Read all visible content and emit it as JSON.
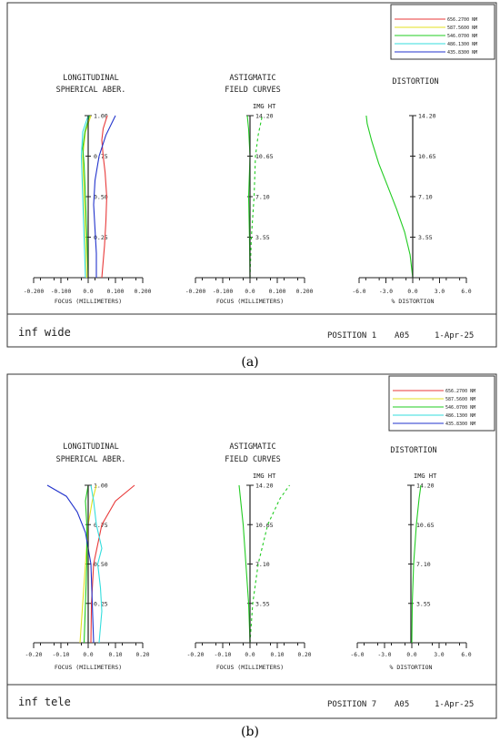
{
  "panels": [
    {
      "caption": "(a)",
      "footer": {
        "left": "inf wide",
        "position": "POSITION  1",
        "code": "A05",
        "date": "1-Apr-25"
      },
      "legend": [
        {
          "label": "656.2700 NM",
          "color": "#e83a3a"
        },
        {
          "label": "587.5600 NM",
          "color": "#e3e021"
        },
        {
          "label": "546.0700 NM",
          "color": "#22cc22"
        },
        {
          "label": "486.1300 NM",
          "color": "#33dddd"
        },
        {
          "label": "435.8300 NM",
          "color": "#2233cc"
        }
      ]
    },
    {
      "caption": "(b)",
      "footer": {
        "left": "inf tele",
        "position": "POSITION  7",
        "code": "A05",
        "date": "1-Apr-25"
      },
      "legend": [
        {
          "label": "656.2700 NM",
          "color": "#e83a3a"
        },
        {
          "label": "587.5600 NM",
          "color": "#e3e021"
        },
        {
          "label": "546.0700 NM",
          "color": "#22cc22"
        },
        {
          "label": "486.1300 NM",
          "color": "#33dddd"
        },
        {
          "label": "435.8300 NM",
          "color": "#2233cc"
        }
      ]
    }
  ],
  "chart_data": [
    {
      "type": "line",
      "title": "LONGITUDINAL SPHERICAL ABER.",
      "xlabel": "FOCUS (MILLIMETERS)",
      "x_ticks": [
        "-0.200",
        "-0.100",
        "0.0",
        "0.100",
        "0.200"
      ],
      "xlim": [
        -0.2,
        0.2
      ],
      "ylim": [
        0,
        1
      ],
      "y_ticks": [
        "1.00",
        "0.75",
        "0.50",
        "0.25"
      ],
      "series": [
        {
          "color": "#e83a3a",
          "points": [
            [
              0.05,
              0
            ],
            [
              0.055,
              0.1
            ],
            [
              0.06,
              0.2
            ],
            [
              0.065,
              0.35
            ],
            [
              0.068,
              0.5
            ],
            [
              0.062,
              0.65
            ],
            [
              0.055,
              0.75
            ],
            [
              0.05,
              0.85
            ],
            [
              0.055,
              0.92
            ],
            [
              0.07,
              1.0
            ]
          ]
        },
        {
          "color": "#e3e021",
          "points": [
            [
              -0.005,
              0
            ],
            [
              -0.01,
              0.25
            ],
            [
              -0.015,
              0.5
            ],
            [
              -0.02,
              0.75
            ],
            [
              -0.01,
              0.9
            ],
            [
              0.01,
              1.0
            ]
          ]
        },
        {
          "color": "#22cc22",
          "points": [
            [
              0.0,
              0
            ],
            [
              -0.005,
              0.25
            ],
            [
              -0.01,
              0.5
            ],
            [
              -0.015,
              0.7
            ],
            [
              -0.02,
              0.8
            ],
            [
              -0.012,
              0.9
            ],
            [
              0.005,
              1.0
            ]
          ]
        },
        {
          "color": "#33dddd",
          "points": [
            [
              -0.01,
              0
            ],
            [
              -0.015,
              0.25
            ],
            [
              -0.02,
              0.5
            ],
            [
              -0.025,
              0.75
            ],
            [
              -0.02,
              0.9
            ],
            [
              0.0,
              1.0
            ]
          ]
        },
        {
          "color": "#2233cc",
          "points": [
            [
              0.03,
              0
            ],
            [
              0.03,
              0.15
            ],
            [
              0.025,
              0.3
            ],
            [
              0.02,
              0.45
            ],
            [
              0.025,
              0.6
            ],
            [
              0.04,
              0.75
            ],
            [
              0.065,
              0.88
            ],
            [
              0.1,
              1.0
            ]
          ]
        }
      ]
    },
    {
      "type": "line",
      "title": "ASTIGMATIC FIELD CURVES",
      "xlabel": "FOCUS (MILLIMETERS)",
      "axis_label": "IMG HT",
      "x_ticks": [
        "-0.200",
        "-0.100",
        "0.0",
        "0.100",
        "0.200"
      ],
      "xlim": [
        -0.2,
        0.2
      ],
      "ylim": [
        0,
        14.2
      ],
      "y_ticks": [
        "14.20",
        "10.65",
        "7.10",
        "3.55"
      ],
      "series": [
        {
          "color": "#22cc22",
          "dash": false,
          "points": [
            [
              0,
              0
            ],
            [
              -0.002,
              3.55
            ],
            [
              -0.005,
              7.1
            ],
            [
              0.0,
              10.65
            ],
            [
              -0.005,
              13
            ],
            [
              -0.01,
              14.2
            ]
          ]
        },
        {
          "color": "#22cc22",
          "dash": true,
          "points": [
            [
              0,
              0
            ],
            [
              0.005,
              3.55
            ],
            [
              0.015,
              7.1
            ],
            [
              0.02,
              10.65
            ],
            [
              0.03,
              12.5
            ],
            [
              0.045,
              14.2
            ]
          ]
        }
      ]
    },
    {
      "type": "line",
      "title": "DISTORTION",
      "xlabel": "% DISTORTION",
      "axis_label": "",
      "x_ticks": [
        "-6.0",
        "-3.0",
        "0.0",
        "3.0",
        "6.0"
      ],
      "xlim": [
        -6,
        6
      ],
      "ylim": [
        0,
        14.2
      ],
      "y_ticks": [
        "14.20",
        "10.65",
        "7.10",
        "3.55"
      ],
      "series": [
        {
          "color": "#22cc22",
          "points": [
            [
              0,
              0
            ],
            [
              -0.3,
              2
            ],
            [
              -0.9,
              4
            ],
            [
              -1.8,
              6
            ],
            [
              -2.8,
              8
            ],
            [
              -3.8,
              10
            ],
            [
              -4.6,
              12
            ],
            [
              -5.1,
              13.5
            ],
            [
              -5.2,
              14.2
            ]
          ]
        }
      ]
    },
    {
      "type": "line",
      "title": "LONGITUDINAL SPHERICAL ABER.",
      "xlabel": "FOCUS (MILLIMETERS)",
      "x_ticks": [
        "-0.20",
        "-0.10",
        "0.0",
        "0.10",
        "0.20"
      ],
      "xlim": [
        -0.2,
        0.2
      ],
      "ylim": [
        0,
        1
      ],
      "y_ticks": [
        "1.00",
        "0.75",
        "0.50",
        "0.25"
      ],
      "series": [
        {
          "color": "#e83a3a",
          "points": [
            [
              0.01,
              0
            ],
            [
              0.012,
              0.25
            ],
            [
              0.02,
              0.5
            ],
            [
              0.05,
              0.75
            ],
            [
              0.1,
              0.9
            ],
            [
              0.17,
              1.0
            ]
          ]
        },
        {
          "color": "#e3e021",
          "points": [
            [
              -0.03,
              0
            ],
            [
              -0.02,
              0.25
            ],
            [
              -0.01,
              0.5
            ],
            [
              0.0,
              0.75
            ],
            [
              0.015,
              0.9
            ],
            [
              0.03,
              1.0
            ]
          ]
        },
        {
          "color": "#22cc22",
          "points": [
            [
              -0.015,
              0
            ],
            [
              -0.01,
              0.25
            ],
            [
              -0.005,
              0.5
            ],
            [
              -0.005,
              0.75
            ],
            [
              -0.01,
              0.9
            ],
            [
              0.0,
              1.0
            ]
          ]
        },
        {
          "color": "#33dddd",
          "points": [
            [
              0.04,
              0
            ],
            [
              0.05,
              0.2
            ],
            [
              0.045,
              0.35
            ],
            [
              0.035,
              0.5
            ],
            [
              0.05,
              0.6
            ],
            [
              0.03,
              0.75
            ],
            [
              0.02,
              0.9
            ],
            [
              0.01,
              1.0
            ]
          ]
        },
        {
          "color": "#2233cc",
          "points": [
            [
              0.02,
              0
            ],
            [
              0.015,
              0.25
            ],
            [
              0.01,
              0.5
            ],
            [
              -0.01,
              0.7
            ],
            [
              -0.04,
              0.83
            ],
            [
              -0.08,
              0.93
            ],
            [
              -0.15,
              1.0
            ]
          ]
        }
      ]
    },
    {
      "type": "line",
      "title": "ASTIGMATIC FIELD CURVES",
      "xlabel": "FOCUS (MILLIMETERS)",
      "axis_label": "IMG HT",
      "x_ticks": [
        "-0.20",
        "-0.10",
        "0.0",
        "0.10",
        "0.20"
      ],
      "xlim": [
        -0.2,
        0.2
      ],
      "ylim": [
        0,
        14.2
      ],
      "y_ticks": [
        "14.20",
        "10.65",
        "7.10",
        "3.55"
      ],
      "series": [
        {
          "color": "#22cc22",
          "dash": false,
          "points": [
            [
              0,
              0
            ],
            [
              -0.005,
              3.55
            ],
            [
              -0.015,
              7.1
            ],
            [
              -0.025,
              10.65
            ],
            [
              -0.035,
              13
            ],
            [
              -0.04,
              14.2
            ]
          ]
        },
        {
          "color": "#22cc22",
          "dash": true,
          "points": [
            [
              0,
              0
            ],
            [
              0.01,
              3.55
            ],
            [
              0.03,
              7.1
            ],
            [
              0.065,
              10.65
            ],
            [
              0.11,
              13
            ],
            [
              0.145,
              14.2
            ]
          ]
        }
      ]
    },
    {
      "type": "line",
      "title": "DISTORTION",
      "xlabel": "% DISTORTION",
      "axis_label": "IMG HT",
      "x_ticks": [
        "-6.0",
        "-3.0",
        "0.0",
        "3.0",
        "6.0"
      ],
      "xlim": [
        -6,
        6
      ],
      "ylim": [
        0,
        14.2
      ],
      "y_ticks": [
        "14.20",
        "10.65",
        "7.10",
        "3.55"
      ],
      "series": [
        {
          "color": "#22cc22",
          "points": [
            [
              0,
              0
            ],
            [
              0.05,
              3.55
            ],
            [
              0.2,
              7.1
            ],
            [
              0.5,
              10.65
            ],
            [
              0.8,
              13
            ],
            [
              1.0,
              14.2
            ]
          ]
        }
      ]
    }
  ]
}
